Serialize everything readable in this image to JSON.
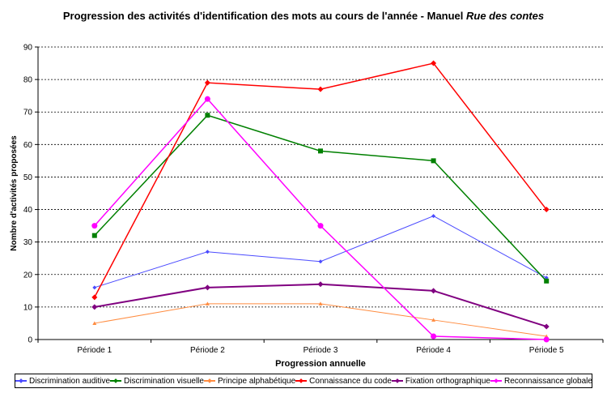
{
  "chart_data": {
    "type": "line",
    "title_prefix": "Progression des activités d'identification des mots au cours de l'année - Manuel ",
    "title_italic": "Rue des contes",
    "xlabel": "Progression annuelle",
    "ylabel": "Nombre d'activités proposées",
    "categories": [
      "Période 1",
      "Période 2",
      "Période 3",
      "Période 4",
      "Période 5"
    ],
    "ylim": [
      0,
      90
    ],
    "yticks": [
      0,
      10,
      20,
      30,
      40,
      50,
      60,
      70,
      80,
      90
    ],
    "grid": true,
    "legend_position": "bottom",
    "series": [
      {
        "name": "Discrimination auditive",
        "color": "#4a4aff",
        "marker": "diamond",
        "width": 1,
        "values": [
          16,
          27,
          24,
          38,
          19
        ]
      },
      {
        "name": "Discrimination visuelle",
        "color": "#008000",
        "marker": "square",
        "width": 1.5,
        "values": [
          32,
          69,
          58,
          55,
          18
        ]
      },
      {
        "name": "Principe alphabétique",
        "color": "#ff8c40",
        "marker": "triangle",
        "width": 1,
        "values": [
          5,
          11,
          11,
          6,
          1
        ]
      },
      {
        "name": "Connaissance du code",
        "color": "#ff0000",
        "marker": "diamond",
        "width": 1.5,
        "values": [
          13,
          79,
          77,
          85,
          40
        ]
      },
      {
        "name": "Fixation orthographique",
        "color": "#800080",
        "marker": "diamond",
        "width": 2,
        "values": [
          10,
          16,
          17,
          15,
          4
        ]
      },
      {
        "name": "Reconnaissance globale",
        "color": "#ff00ff",
        "marker": "circle",
        "width": 1.5,
        "values": [
          35,
          74,
          35,
          1,
          0
        ]
      }
    ]
  }
}
